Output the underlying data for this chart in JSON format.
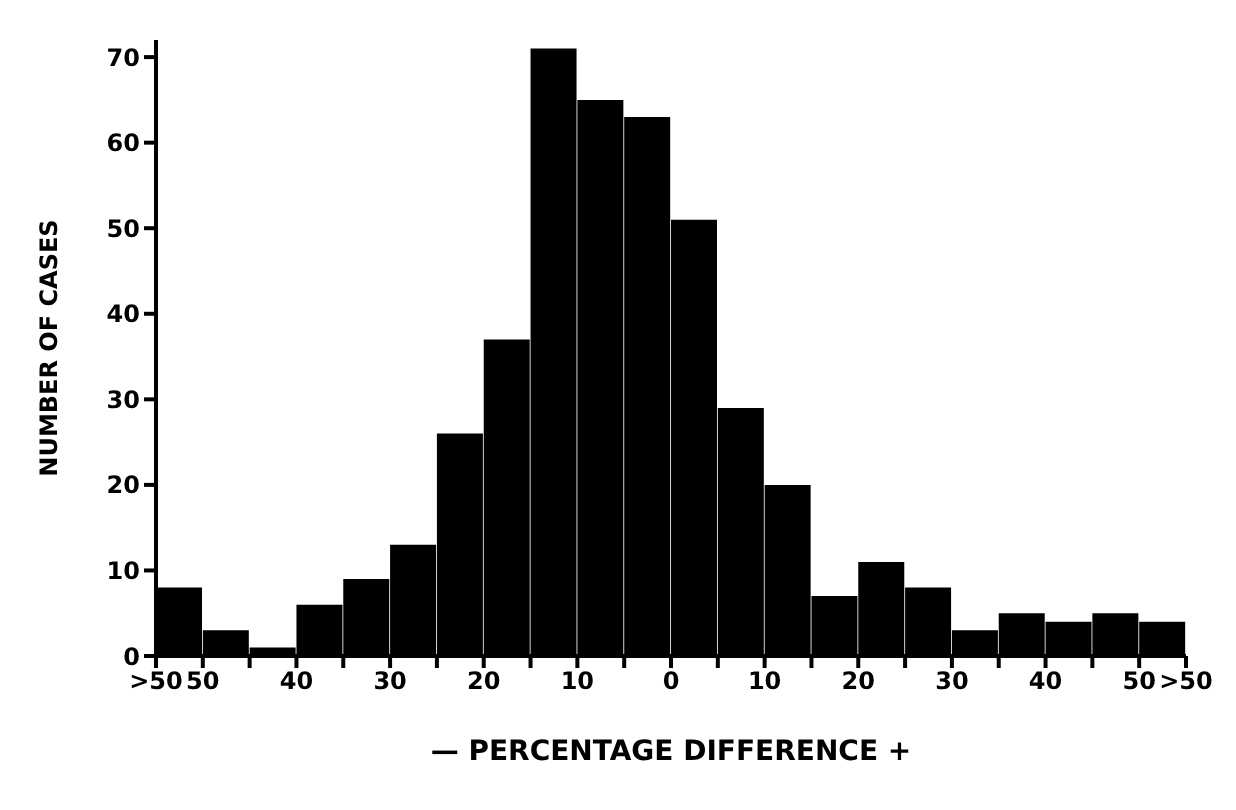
{
  "chart_data": {
    "type": "histogram",
    "xlabel": "—   PERCENTAGE DIFFERENCE   +",
    "ylabel": "NUMBER OF CASES",
    "bins": [
      -55,
      -50,
      -45,
      -40,
      -35,
      -30,
      -25,
      -20,
      -15,
      -10,
      -5,
      0,
      5,
      10,
      15,
      20,
      25,
      30,
      35,
      40,
      45,
      50,
      55
    ],
    "values": [
      8,
      3,
      1,
      6,
      9,
      13,
      26,
      37,
      71,
      65,
      63,
      51,
      29,
      20,
      7,
      11,
      8,
      3,
      5,
      4,
      5,
      4
    ],
    "color": "#000000",
    "xlim": [
      -55,
      55
    ],
    "xticks": [
      {
        "value": -55,
        "label": ">50"
      },
      {
        "value": -50,
        "label": "50"
      },
      {
        "value": -45,
        "label": null
      },
      {
        "value": -40,
        "label": "40"
      },
      {
        "value": -35,
        "label": null
      },
      {
        "value": -30,
        "label": "30"
      },
      {
        "value": -25,
        "label": null
      },
      {
        "value": -20,
        "label": "20"
      },
      {
        "value": -15,
        "label": null
      },
      {
        "value": -10,
        "label": "10"
      },
      {
        "value": -5,
        "label": null
      },
      0,
      {
        "value": 5,
        "label": null
      },
      10,
      {
        "value": 15,
        "label": null
      },
      20,
      {
        "value": 25,
        "label": null
      },
      30,
      {
        "value": 35,
        "label": null
      },
      40,
      {
        "value": 45,
        "label": null
      },
      50,
      {
        "value": 55,
        "label": ">50"
      }
    ],
    "ylim": [
      0,
      72
    ],
    "yticks": [
      0,
      10,
      20,
      30,
      40,
      50,
      60,
      70
    ],
    "grid": false,
    "legend": false
  }
}
